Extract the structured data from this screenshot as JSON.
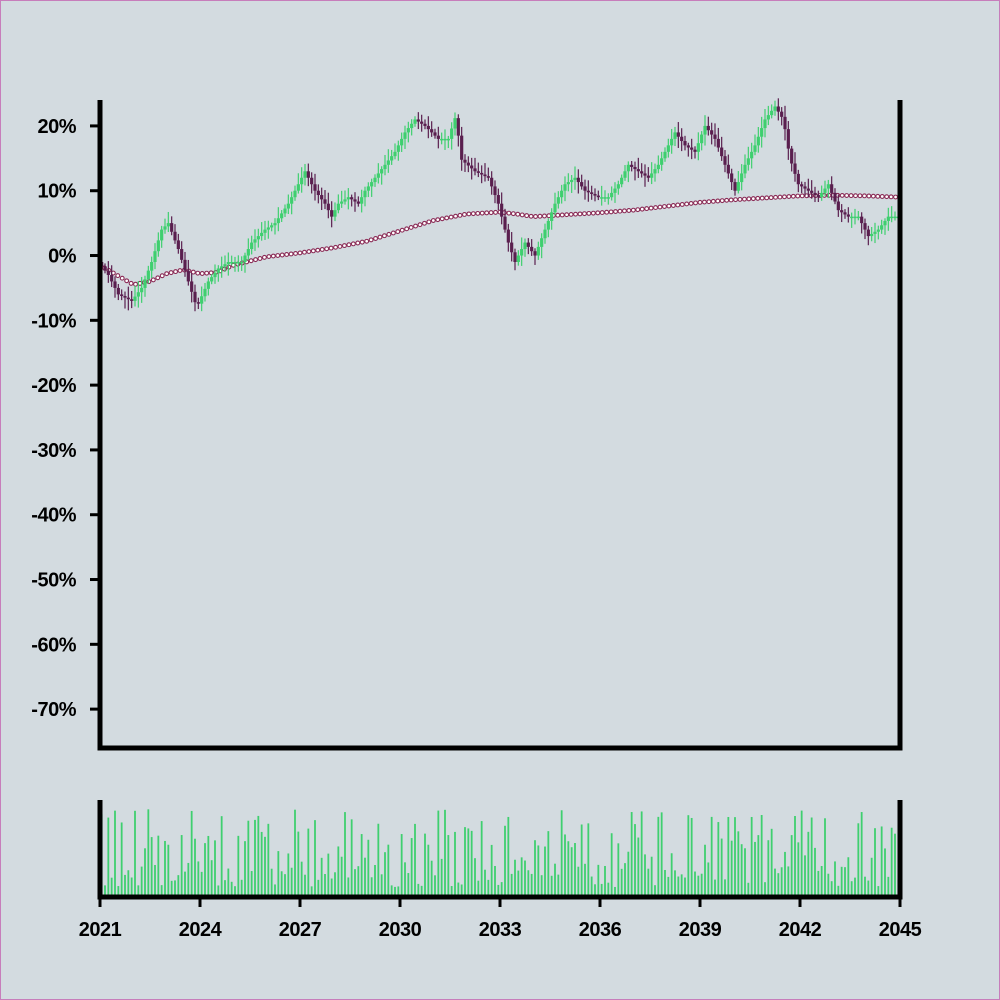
{
  "chart_data": {
    "type": "candlestick",
    "title": "",
    "xlabel": "",
    "ylabel": "",
    "x_range": [
      2021,
      2045
    ],
    "xticks": [
      "2021",
      "2024",
      "2027",
      "2030",
      "2033",
      "2036",
      "2039",
      "2042",
      "2045"
    ],
    "ylim": [
      -76,
      24
    ],
    "yticks": [
      "20%",
      "10%",
      "0%",
      "-10%",
      "-20%",
      "-30%",
      "-40%",
      "-50%",
      "-60%",
      "-70%"
    ],
    "grid": false,
    "legend": "none",
    "colors": {
      "up": "#3fcf6f",
      "down": "#5a1f4f",
      "moving_average": "#8a2a55",
      "volume": "#3fcf6f",
      "axis": "#000000"
    },
    "close_keyframes": [
      [
        2021.0,
        -1
      ],
      [
        2021.3,
        -3
      ],
      [
        2021.6,
        -6
      ],
      [
        2022.0,
        -7
      ],
      [
        2022.3,
        -5
      ],
      [
        2022.6,
        -1
      ],
      [
        2022.9,
        4
      ],
      [
        2023.1,
        5
      ],
      [
        2023.4,
        1
      ],
      [
        2023.7,
        -4
      ],
      [
        2023.95,
        -8
      ],
      [
        2024.3,
        -4
      ],
      [
        2024.6,
        -2
      ],
      [
        2024.9,
        -1
      ],
      [
        2025.3,
        -1
      ],
      [
        2025.6,
        2
      ],
      [
        2026.0,
        4
      ],
      [
        2026.3,
        5
      ],
      [
        2026.7,
        8
      ],
      [
        2027.0,
        11
      ],
      [
        2027.2,
        13
      ],
      [
        2027.5,
        10
      ],
      [
        2027.8,
        8
      ],
      [
        2028.0,
        6
      ],
      [
        2028.2,
        8
      ],
      [
        2028.5,
        9
      ],
      [
        2028.8,
        8
      ],
      [
        2029.0,
        10
      ],
      [
        2029.3,
        12
      ],
      [
        2029.6,
        14
      ],
      [
        2029.9,
        16
      ],
      [
        2030.2,
        19
      ],
      [
        2030.5,
        21
      ],
      [
        2030.8,
        20
      ],
      [
        2031.0,
        19
      ],
      [
        2031.2,
        18
      ],
      [
        2031.5,
        18
      ],
      [
        2031.75,
        22
      ],
      [
        2031.85,
        15
      ],
      [
        2032.3,
        13
      ],
      [
        2032.7,
        12
      ],
      [
        2033.0,
        8
      ],
      [
        2033.3,
        2
      ],
      [
        2033.5,
        -1
      ],
      [
        2033.8,
        2
      ],
      [
        2034.1,
        0
      ],
      [
        2034.4,
        4
      ],
      [
        2034.7,
        8
      ],
      [
        2035.0,
        11
      ],
      [
        2035.3,
        12
      ],
      [
        2035.6,
        10
      ],
      [
        2036.0,
        9
      ],
      [
        2036.3,
        9
      ],
      [
        2036.6,
        11
      ],
      [
        2036.9,
        14
      ],
      [
        2037.2,
        13
      ],
      [
        2037.5,
        12
      ],
      [
        2037.8,
        14
      ],
      [
        2038.0,
        16
      ],
      [
        2038.3,
        19
      ],
      [
        2038.6,
        17
      ],
      [
        2038.9,
        16
      ],
      [
        2039.2,
        20
      ],
      [
        2039.5,
        18
      ],
      [
        2039.8,
        14
      ],
      [
        2040.1,
        10
      ],
      [
        2040.4,
        14
      ],
      [
        2040.7,
        17
      ],
      [
        2041.0,
        21
      ],
      [
        2041.3,
        23
      ],
      [
        2041.55,
        21
      ],
      [
        2041.75,
        15
      ],
      [
        2042.0,
        11
      ],
      [
        2042.3,
        10
      ],
      [
        2042.6,
        9
      ],
      [
        2042.9,
        11
      ],
      [
        2043.2,
        7
      ],
      [
        2043.5,
        6
      ],
      [
        2043.8,
        6
      ],
      [
        2044.1,
        3
      ],
      [
        2044.4,
        4
      ],
      [
        2044.7,
        6
      ],
      [
        2045.0,
        6
      ]
    ],
    "moving_average_keyframes": [
      [
        2021.0,
        -1.5
      ],
      [
        2021.5,
        -3
      ],
      [
        2022.0,
        -4.5
      ],
      [
        2022.5,
        -4
      ],
      [
        2023.0,
        -2.8
      ],
      [
        2023.5,
        -2.2
      ],
      [
        2024.0,
        -2.8
      ],
      [
        2024.5,
        -2.6
      ],
      [
        2025.0,
        -1.5
      ],
      [
        2026.0,
        -0.2
      ],
      [
        2027.0,
        0.4
      ],
      [
        2028.0,
        1.2
      ],
      [
        2029.0,
        2.2
      ],
      [
        2030.0,
        3.8
      ],
      [
        2031.0,
        5.4
      ],
      [
        2032.0,
        6.4
      ],
      [
        2033.0,
        6.7
      ],
      [
        2033.5,
        6.4
      ],
      [
        2034.0,
        6.0
      ],
      [
        2035.0,
        6.3
      ],
      [
        2036.0,
        6.6
      ],
      [
        2037.0,
        7.0
      ],
      [
        2038.0,
        7.6
      ],
      [
        2039.0,
        8.2
      ],
      [
        2040.0,
        8.6
      ],
      [
        2041.0,
        8.9
      ],
      [
        2042.0,
        9.2
      ],
      [
        2043.0,
        9.3
      ],
      [
        2044.0,
        9.2
      ],
      [
        2045.0,
        9.0
      ]
    ]
  }
}
